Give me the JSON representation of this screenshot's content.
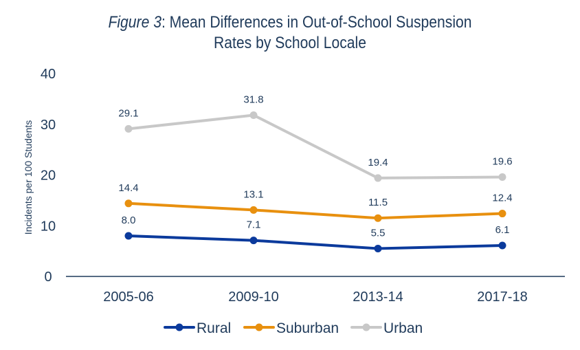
{
  "chart_data": {
    "type": "line",
    "title_prefix": "Figure 3",
    "title_line1": ": Mean Differences in Out-of-School Suspension",
    "title_line2": "Rates by School Locale",
    "xlabel": "",
    "ylabel": "Incidents per 100 Students",
    "ylim": [
      0,
      40
    ],
    "yticks": [
      0,
      10,
      20,
      30,
      40
    ],
    "categories": [
      "2005-06",
      "2009-10",
      "2013-14",
      "2017-18"
    ],
    "grid": false,
    "legend_position": "bottom-center",
    "series": [
      {
        "name": "Rural",
        "color": "#0b3a9c",
        "values": [
          8.0,
          7.1,
          5.5,
          6.1
        ],
        "labels": [
          "8.0",
          "7.1",
          "5.5",
          "6.1"
        ]
      },
      {
        "name": "Suburban",
        "color": "#e8900f",
        "values": [
          14.4,
          13.1,
          11.5,
          12.4
        ],
        "labels": [
          "14.4",
          "13.1",
          "11.5",
          "12.4"
        ]
      },
      {
        "name": "Urban",
        "color": "#c8c8c8",
        "values": [
          29.1,
          31.8,
          19.4,
          19.6
        ],
        "labels": [
          "29.1",
          "31.8",
          "19.4",
          "19.6"
        ]
      }
    ]
  }
}
